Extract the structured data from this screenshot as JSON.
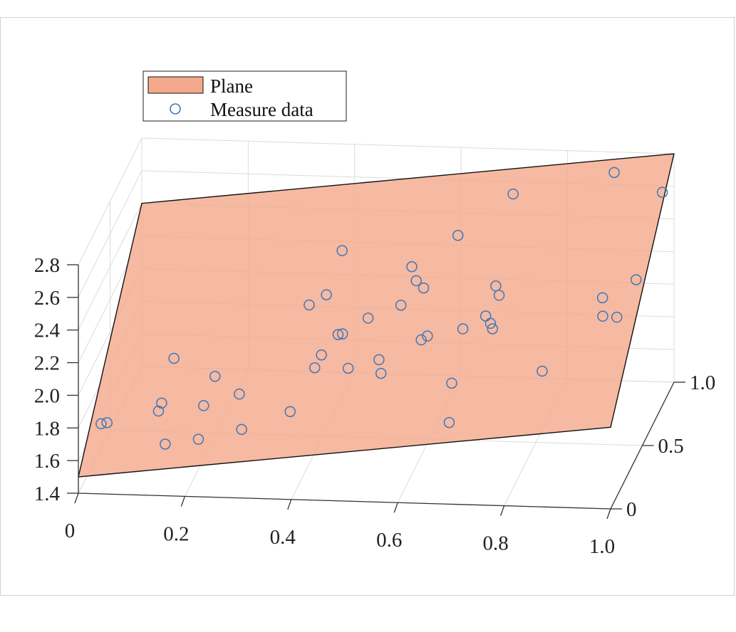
{
  "chart_data": {
    "type": "scatter",
    "subtype": "3d-plane-with-scatter",
    "title": "",
    "xlabel": "",
    "ylabel": "",
    "zlabel": "",
    "xlim": [
      0,
      1.0
    ],
    "ylim": [
      0,
      1.0
    ],
    "zlim": [
      1.4,
      2.8
    ],
    "grid": true,
    "legend_position": "top-left",
    "x_ticks": [
      "0",
      "0.2",
      "0.4",
      "0.6",
      "0.8",
      "1.0"
    ],
    "y_ticks": [
      "0",
      "0.5",
      "1.0"
    ],
    "z_ticks": [
      "1.4",
      "1.6",
      "1.8",
      "2.0",
      "2.2",
      "2.4",
      "2.6",
      "2.8"
    ],
    "legend": [
      {
        "label": "Plane",
        "marker": "patch",
        "color": "#f4a98d"
      },
      {
        "label": "Measure data",
        "marker": "circle",
        "color": "#3f78b5"
      }
    ],
    "plane": {
      "name": "Plane",
      "corners": [
        {
          "x": 0,
          "y": 0,
          "z": 1.5
        },
        {
          "x": 1,
          "y": 0,
          "z": 1.9
        },
        {
          "x": 1,
          "y": 1,
          "z": 2.8
        },
        {
          "x": 0,
          "y": 1,
          "z": 2.4
        }
      ],
      "fill": "#f4a98d",
      "edge": "#111111"
    },
    "series": [
      {
        "name": "Measure data",
        "marker": "circle",
        "color": "#3f78b5",
        "points": [
          {
            "x": 0.02,
            "y": 0.19,
            "z": 1.68
          },
          {
            "x": 0.03,
            "y": 0.2,
            "z": 1.68
          },
          {
            "x": 0.11,
            "y": 0.34,
            "z": 1.65
          },
          {
            "x": 0.11,
            "y": 0.39,
            "z": 1.66
          },
          {
            "x": 0.12,
            "y": 0.5,
            "z": 1.85
          },
          {
            "x": 0.15,
            "y": 0.11,
            "z": 1.63
          },
          {
            "x": 0.19,
            "y": 0.38,
            "z": 1.66
          },
          {
            "x": 0.19,
            "y": 0.56,
            "z": 1.7
          },
          {
            "x": 0.21,
            "y": 0.13,
            "z": 1.65
          },
          {
            "x": 0.25,
            "y": 0.44,
            "z": 1.69
          },
          {
            "x": 0.29,
            "y": 0.14,
            "z": 1.71
          },
          {
            "x": 0.33,
            "y": 0.87,
            "z": 1.91
          },
          {
            "x": 0.36,
            "y": 0.89,
            "z": 1.96
          },
          {
            "x": 0.38,
            "y": 0.15,
            "z": 1.82
          },
          {
            "x": 0.39,
            "y": 0.56,
            "z": 1.85
          },
          {
            "x": 0.42,
            "y": 0.64,
            "z": 1.92
          },
          {
            "x": 0.42,
            "y": 0.57,
            "z": 1.97
          },
          {
            "x": 0.38,
            "y": 0.97,
            "z": 2.17
          },
          {
            "x": 0.4,
            "y": 0.37,
            "z": 1.92
          },
          {
            "x": 0.47,
            "y": 0.31,
            "z": 1.97
          },
          {
            "x": 0.53,
            "y": 0.88,
            "z": 2.07
          },
          {
            "x": 0.51,
            "y": 0.46,
            "z": 1.91
          },
          {
            "x": 0.48,
            "y": 0.54,
            "z": 2.1
          },
          {
            "x": 0.54,
            "y": 0.24,
            "z": 2.0
          },
          {
            "x": 0.6,
            "y": 0.37,
            "z": 2.11
          },
          {
            "x": 0.68,
            "y": 0.18,
            "z": 2.0
          },
          {
            "x": 0.7,
            "y": 0.76,
            "z": 2.09
          },
          {
            "x": 0.71,
            "y": 0.54,
            "z": 2.09
          },
          {
            "x": 0.68,
            "y": 0.14,
            "z": 1.79
          },
          {
            "x": 0.57,
            "y": 0.66,
            "z": 2.2
          },
          {
            "x": 0.53,
            "y": 0.81,
            "z": 2.21
          },
          {
            "x": 0.67,
            "y": 0.44,
            "z": 2.13
          },
          {
            "x": 0.6,
            "y": 0.95,
            "z": 2.3
          },
          {
            "x": 0.62,
            "y": 0.3,
            "z": 2.19
          },
          {
            "x": 0.55,
            "y": 0.47,
            "z": 2.24
          },
          {
            "x": 0.7,
            "y": 0.98,
            "z": 2.54
          },
          {
            "x": 0.74,
            "y": 0.32,
            "z": 2.23
          },
          {
            "x": 0.72,
            "y": 0.54,
            "z": 2.32
          },
          {
            "x": 0.72,
            "y": 0.38,
            "z": 2.26
          },
          {
            "x": 0.89,
            "y": 0.98,
            "z": 2.69
          },
          {
            "x": 0.85,
            "y": 0.18,
            "z": 2.09
          },
          {
            "x": 0.94,
            "y": 0.38,
            "z": 2.28
          },
          {
            "x": 0.93,
            "y": 0.46,
            "z": 2.33
          },
          {
            "x": 0.97,
            "y": 0.35,
            "z": 2.3
          },
          {
            "x": 0.98,
            "y": 0.57,
            "z": 2.36
          },
          {
            "x": 0.99,
            "y": 0.9,
            "z": 2.64
          }
        ]
      }
    ]
  }
}
